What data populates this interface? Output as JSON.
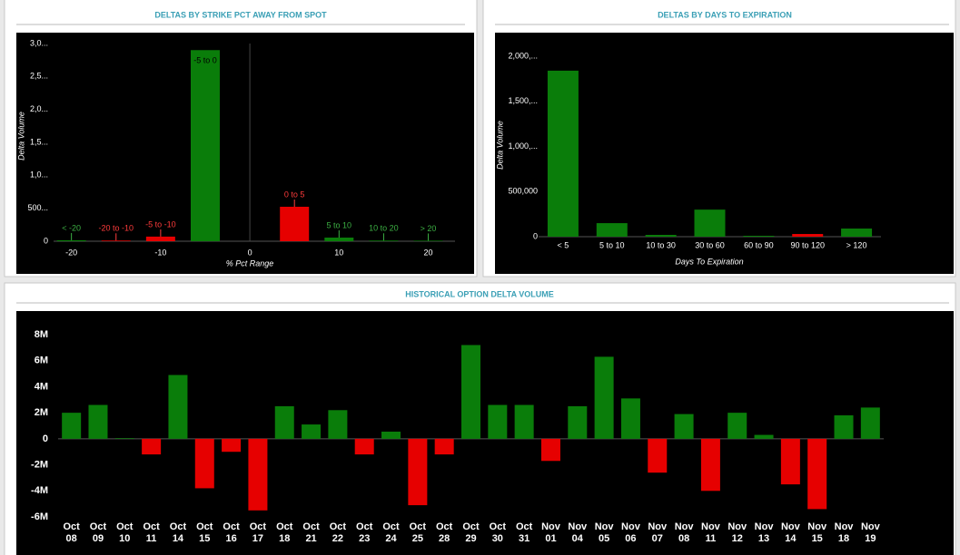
{
  "chart_data": [
    {
      "type": "bar",
      "title": "DELTAS BY STRIKE PCT AWAY FROM SPOT",
      "x_label": "% Pct Range",
      "y_label": "Delta Volume",
      "categories": [
        "< -20",
        "-20 to -10",
        "-5 to -10",
        "-5 to 0",
        "0 to 5",
        "5 to 10",
        "10 to 20",
        "> 20"
      ],
      "x": [
        -20,
        -15,
        -10,
        -5,
        5,
        10,
        15,
        20
      ],
      "values": [
        15000,
        10000,
        70000,
        2900000,
        523000,
        55000,
        10000,
        8000
      ],
      "colors": [
        "#0a7d0a",
        "#e60000",
        "#e60000",
        "#0a7d0a",
        "#e60000",
        "#0a7d0a",
        "#0a7d0a",
        "#0a7d0a"
      ],
      "xlim": [
        -22,
        23
      ],
      "xticks": [
        -20,
        -10,
        0,
        10,
        20
      ],
      "reference_x": 0,
      "ylim": [
        0,
        3000000
      ],
      "yticks": [
        0,
        {
          "value": 500000,
          "label": "500..."
        },
        {
          "value": 1000000,
          "label": "1,0..."
        },
        {
          "value": 1500000,
          "label": "1,5..."
        },
        {
          "value": 2000000,
          "label": "2,0..."
        },
        {
          "value": 2500000,
          "label": "2,5..."
        },
        {
          "value": 3000000,
          "label": "3,0..."
        }
      ]
    },
    {
      "type": "bar",
      "title": "DELTAS BY DAYS TO EXPIRATION",
      "x_label": "Days To Expiration",
      "y_label": "Delta Volume",
      "categories": [
        "< 5",
        "5 to 10",
        "10 to 30",
        "30 to 60",
        "60 to 90",
        "90 to 120",
        "> 120"
      ],
      "values": [
        1840000,
        150000,
        20000,
        300000,
        10000,
        30000,
        90000
      ],
      "colors": [
        "#0a7d0a",
        "#0a7d0a",
        "#0a7d0a",
        "#0a7d0a",
        "#0a7d0a",
        "#e60000",
        "#0a7d0a"
      ],
      "ylim": [
        0,
        2000000
      ],
      "yticks": [
        0,
        {
          "value": 500000,
          "label": "500,000"
        },
        {
          "value": 1000000,
          "label": "1,000,..."
        },
        {
          "value": 1500000,
          "label": "1,500,..."
        },
        {
          "value": 2000000,
          "label": "2,000,..."
        }
      ]
    },
    {
      "type": "bar",
      "title": "HISTORICAL OPTION DELTA VOLUME",
      "categories": [
        "Oct 08",
        "Oct 09",
        "Oct 10",
        "Oct 11",
        "Oct 14",
        "Oct 15",
        "Oct 16",
        "Oct 17",
        "Oct 18",
        "Oct 21",
        "Oct 22",
        "Oct 23",
        "Oct 24",
        "Oct 25",
        "Oct 28",
        "Oct 29",
        "Oct 30",
        "Oct 31",
        "Nov 01",
        "Nov 04",
        "Nov 05",
        "Nov 06",
        "Nov 07",
        "Nov 08",
        "Nov 11",
        "Nov 12",
        "Nov 13",
        "Nov 14",
        "Nov 15",
        "Nov 18",
        "Nov 19"
      ],
      "values": [
        2000000,
        2600000,
        50000,
        -1200000,
        4900000,
        -3800000,
        -1000000,
        -5500000,
        2500000,
        1100000,
        2200000,
        -1200000,
        550000,
        -5100000,
        -1200000,
        7200000,
        2600000,
        2600000,
        -1700000,
        2500000,
        6300000,
        3100000,
        -2600000,
        1900000,
        -4000000,
        2000000,
        300000,
        -3500000,
        -5400000,
        1800000,
        2400000
      ],
      "colors": [
        "#0a7d0a",
        "#0a7d0a",
        "#0a7d0a",
        "#e60000",
        "#0a7d0a",
        "#e60000",
        "#e60000",
        "#e60000",
        "#0a7d0a",
        "#0a7d0a",
        "#0a7d0a",
        "#e60000",
        "#0a7d0a",
        "#e60000",
        "#e60000",
        "#0a7d0a",
        "#0a7d0a",
        "#0a7d0a",
        "#e60000",
        "#0a7d0a",
        "#0a7d0a",
        "#0a7d0a",
        "#e60000",
        "#0a7d0a",
        "#e60000",
        "#0a7d0a",
        "#0a7d0a",
        "#e60000",
        "#e60000",
        "#0a7d0a",
        "#0a7d0a"
      ],
      "ylim": [
        -6000000,
        8000000
      ],
      "yticks": [
        {
          "value": -6000000,
          "label": "-6M"
        },
        {
          "value": -4000000,
          "label": "-4M"
        },
        {
          "value": -2000000,
          "label": "-2M"
        },
        0,
        {
          "value": 2000000,
          "label": "2M"
        },
        {
          "value": 4000000,
          "label": "4M"
        },
        {
          "value": 6000000,
          "label": "6M"
        },
        {
          "value": 8000000,
          "label": "8M"
        }
      ]
    }
  ]
}
